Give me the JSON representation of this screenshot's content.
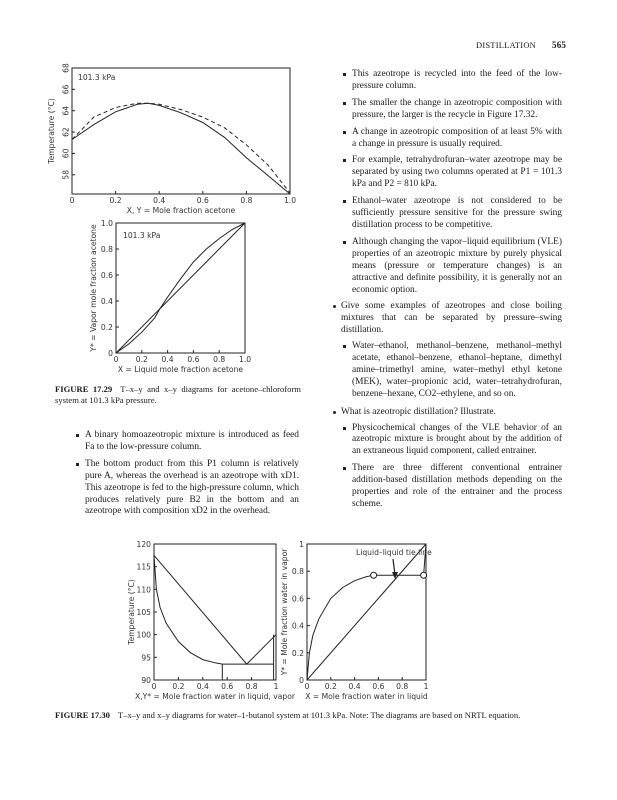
{
  "header": {
    "section": "DISTILLATION",
    "page_number": "565"
  },
  "figure_17_29": {
    "caption_label": "FIGURE 17.29",
    "caption_text": "T–x–y and x–y diagrams for acetone–chloroform system at 101.3 kPa pressure."
  },
  "figure_17_30": {
    "caption_label": "FIGURE 17.30",
    "caption_text": "T–x–y and x–y diagrams for water–1-butanol system at 101.3 kPa. Note: The diagrams are based on NRTL equation."
  },
  "left_bullets": [
    "A binary homoazeotropic mixture is introduced as feed Fa to the low-pressure column.",
    "The bottom product from this P1 column is relatively pure A, whereas the overhead is an azeotrope with xD1. This azeotrope is fed to the high-pressure column, which produces relatively pure B2 in the bottom and an azeotrope with composition xD2 in the overhead."
  ],
  "right_bullets": [
    "This azeotrope is recycled into the feed of the low-pressure column.",
    "The smaller the change in azeotropic composition with pressure, the larger is the recycle in Figure 17.32.",
    "A change in azeotropic composition of at least 5% with a change in pressure is usually required.",
    "For example, tetrahydrofuran–water azeotrope may be separated by using two columns operated at P1 = 101.3 kPa and P2 = 810 kPa.",
    "Ethanol–water azeotrope is not considered to be sufficiently pressure sensitive for the pressure swing distillation process to be competitive.",
    "Although changing the vapor–liquid equilibrium (VLE) properties of an azeotropic mixture by purely physical means (pressure or temperature changes) is an attractive and definite possibility, it is generally not an economic option."
  ],
  "question_1": "Give some examples of azeotropes and close boiling mixtures that can be separated by pressure–swing distillation.",
  "answer_1": [
    "Water–ethanol, methanol–benzene, methanol–methyl acetate, ethanol–benzene, ethanol–heptane, dimethyl amine–trimethyl amine, water–methyl ethyl ketone (MEK), water–propionic acid, water–tetrahydrofuran, benzene–hexane, CO2–ethylene, and so on."
  ],
  "question_2": "What is azeotropic distillation? Illustrate.",
  "answer_2": [
    "Physicochemical changes of the VLE behavior of an azeotropic mixture is brought about by the addition of an extraneous liquid component, called entrainer.",
    "There are three different conventional entrainer addition-based distillation methods depending on the properties and role of the entrainer and the process scheme."
  ],
  "chart_data": [
    {
      "type": "line",
      "annotation": "101.3 kPa",
      "xlabel": "X, Y = Mole fraction acetone",
      "ylabel": "Temperature (°C)",
      "xlim": [
        0,
        1
      ],
      "ylim": [
        56.2,
        68
      ],
      "xticks": [
        "0",
        "0.2",
        "0.4",
        "0.6",
        "0.8",
        "1.0"
      ],
      "yticks": [
        "58",
        "60",
        "62",
        "64",
        "66",
        "68"
      ],
      "series": [
        {
          "style": "solid",
          "x": [
            0,
            0.1,
            0.2,
            0.3,
            0.35,
            0.4,
            0.5,
            0.6,
            0.7,
            0.8,
            0.9,
            1.0
          ],
          "y": [
            61.3,
            62.7,
            63.9,
            64.6,
            64.7,
            64.5,
            63.8,
            62.9,
            61.5,
            59.6,
            57.9,
            56.2
          ]
        },
        {
          "style": "dashed",
          "x": [
            0,
            0.1,
            0.2,
            0.3,
            0.35,
            0.4,
            0.5,
            0.6,
            0.7,
            0.8,
            0.9,
            1.0
          ],
          "y": [
            61.3,
            63.4,
            64.3,
            64.7,
            64.7,
            64.6,
            64.1,
            63.4,
            62.4,
            60.8,
            58.9,
            56.3
          ]
        }
      ]
    },
    {
      "type": "line",
      "annotation": "101.3 kPa",
      "xlabel": "X = Liquid mole fraction acetone",
      "ylabel": "Y* = Vapor mole fraction acetone",
      "xlim": [
        0,
        1
      ],
      "ylim": [
        0,
        1
      ],
      "xticks": [
        "0",
        "0.2",
        "0.4",
        "0.6",
        "0.8",
        "1.0"
      ],
      "yticks": [
        "0",
        "0.2",
        "0.4",
        "0.6",
        "0.8",
        "1.0"
      ],
      "series": [
        {
          "style": "solid",
          "x": [
            0,
            1
          ],
          "y": [
            0,
            1
          ]
        },
        {
          "style": "solid",
          "x": [
            0,
            0.1,
            0.2,
            0.3,
            0.34,
            0.4,
            0.5,
            0.6,
            0.7,
            0.8,
            0.9,
            1
          ],
          "y": [
            0,
            0.07,
            0.16,
            0.27,
            0.34,
            0.43,
            0.57,
            0.7,
            0.8,
            0.88,
            0.95,
            1
          ]
        }
      ]
    },
    {
      "type": "line",
      "annotation": "",
      "xlabel": "X,Y* = Mole fraction water in liquid, vapor",
      "ylabel": "Temperature (°C)",
      "xlim": [
        0,
        1
      ],
      "ylim": [
        90,
        120
      ],
      "xticks": [
        "0",
        "0.2",
        "0.4",
        "0.6",
        "0.8",
        "1"
      ],
      "yticks": [
        "90",
        "95",
        "100",
        "105",
        "110",
        "115",
        "120"
      ],
      "series": [
        {
          "style": "solid",
          "x": [
            0,
            0.76,
            1
          ],
          "y": [
            117.5,
            93.5,
            100
          ]
        },
        {
          "style": "solid",
          "x": [
            0,
            0.02,
            0.05,
            0.1,
            0.2,
            0.3,
            0.4,
            0.5,
            0.56
          ],
          "y": [
            117.5,
            110,
            106,
            102.5,
            98.5,
            96,
            94.5,
            93.8,
            93.5
          ]
        },
        {
          "style": "solid",
          "x": [
            0.56,
            0.98
          ],
          "y": [
            93.5,
            93.5
          ]
        },
        {
          "style": "solid",
          "x": [
            0.56,
            0.56
          ],
          "y": [
            90,
            93.5
          ]
        },
        {
          "style": "solid",
          "x": [
            0.98,
            0.98
          ],
          "y": [
            90,
            100
          ]
        }
      ]
    },
    {
      "type": "line",
      "annotation": "Liquid–liquid tie line",
      "xlabel": "X = Mole fraction water in liquid",
      "ylabel": "Y* = Mole fraction water in vapor",
      "xlim": [
        0,
        1
      ],
      "ylim": [
        0,
        1
      ],
      "xticks": [
        "0",
        "0.2",
        "0.4",
        "0.6",
        "0.8",
        "1"
      ],
      "yticks": [
        "0",
        "0.2",
        "0.4",
        "0.6",
        "0.8",
        "1"
      ],
      "series": [
        {
          "style": "solid",
          "x": [
            0,
            1
          ],
          "y": [
            0,
            1
          ]
        },
        {
          "style": "solid",
          "x": [
            0,
            0.02,
            0.05,
            0.1,
            0.2,
            0.3,
            0.4,
            0.5,
            0.56
          ],
          "y": [
            0,
            0.2,
            0.33,
            0.45,
            0.6,
            0.68,
            0.73,
            0.76,
            0.77
          ]
        },
        {
          "style": "solid",
          "x": [
            0.56,
            0.98
          ],
          "y": [
            0.77,
            0.77
          ]
        },
        {
          "style": "solid",
          "x": [
            0.98,
            1
          ],
          "y": [
            0.77,
            1
          ]
        }
      ],
      "markers": {
        "style": "open-circle",
        "x": [
          0.56,
          0.98
        ],
        "y": [
          0.77,
          0.77
        ]
      }
    }
  ]
}
